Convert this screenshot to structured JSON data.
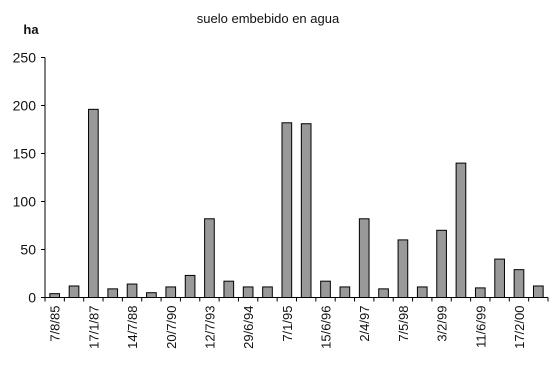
{
  "chart_data": {
    "type": "bar",
    "title": "suelo embebido en agua",
    "ylabel": "ha",
    "xlabel": "",
    "ylim": [
      0,
      250
    ],
    "yticks": [
      0,
      50,
      100,
      150,
      200,
      250
    ],
    "grid": false,
    "bar_color": "#999999",
    "categories": [
      "7/8/85",
      "",
      "17/1/87",
      "",
      "14/7/88",
      "",
      "20/7/90",
      "",
      "12/7/93",
      "",
      "29/6/94",
      "",
      "7/1/95",
      "",
      "15/6/96",
      "",
      "2/4/97",
      "",
      "7/5/98",
      "",
      "3/2/99",
      "",
      "11/6/99",
      "",
      "17/2/00",
      ""
    ],
    "values": [
      4,
      12,
      196,
      9,
      14,
      5,
      11,
      23,
      82,
      17,
      11,
      11,
      182,
      181,
      17,
      11,
      82,
      9,
      60,
      11,
      70,
      140,
      10,
      40,
      29,
      12
    ]
  }
}
